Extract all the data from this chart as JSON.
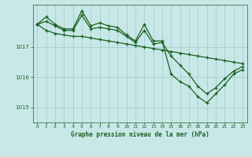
{
  "title": "Graphe pression niveau de la mer (hPa)",
  "bg_color": "#c8e8e8",
  "grid_color": "#a0c8c8",
  "line_color": "#1a6020",
  "xlim": [
    -0.5,
    23.5
  ],
  "ylim": [
    1014.5,
    1018.4
  ],
  "yticks": [
    1015,
    1016,
    1017
  ],
  "xticks": [
    0,
    1,
    2,
    3,
    4,
    5,
    6,
    7,
    8,
    9,
    10,
    11,
    12,
    13,
    14,
    15,
    16,
    17,
    18,
    19,
    20,
    21,
    22,
    23
  ],
  "series1": [
    1017.75,
    1018.0,
    1017.75,
    1017.6,
    1017.6,
    1018.2,
    1017.7,
    1017.8,
    1017.7,
    1017.65,
    1017.4,
    1017.2,
    1017.75,
    1017.2,
    1017.2,
    1016.1,
    1015.85,
    1015.7,
    1015.35,
    1015.15,
    1015.45,
    1015.75,
    1016.1,
    1016.25
  ],
  "series2": [
    1017.75,
    1017.55,
    1017.45,
    1017.4,
    1017.35,
    1017.35,
    1017.3,
    1017.25,
    1017.2,
    1017.15,
    1017.1,
    1017.05,
    1017.0,
    1016.95,
    1016.9,
    1016.85,
    1016.8,
    1016.75,
    1016.7,
    1016.65,
    1016.6,
    1016.55,
    1016.5,
    1016.45
  ],
  "series3": [
    1017.75,
    1017.85,
    1017.7,
    1017.55,
    1017.55,
    1018.05,
    1017.6,
    1017.65,
    1017.6,
    1017.55,
    1017.35,
    1017.15,
    1017.55,
    1017.1,
    1017.15,
    1016.7,
    1016.4,
    1016.1,
    1015.7,
    1015.45,
    1015.65,
    1015.95,
    1016.2,
    1016.35
  ]
}
